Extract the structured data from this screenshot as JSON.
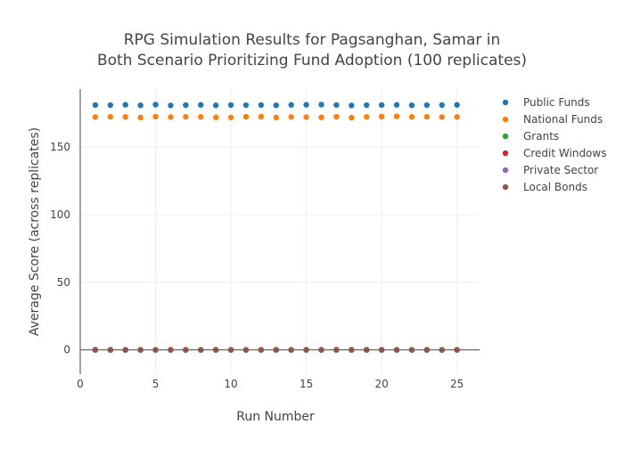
{
  "chart_data": {
    "type": "scatter",
    "title_lines": [
      "RPG Simulation Results for Pagsanghan, Samar in",
      "Both Scenario Prioritizing Fund Adoption (100 replicates)"
    ],
    "xlabel": "Run Number",
    "ylabel": "Average Score (across replicates)",
    "xlim": [
      0,
      26.5
    ],
    "ylim": [
      -18,
      193
    ],
    "x_ticks": [
      0,
      5,
      10,
      15,
      20,
      25
    ],
    "y_ticks": [
      0,
      50,
      100,
      150
    ],
    "grid": true,
    "legend_position": "top-right",
    "x": [
      1,
      2,
      3,
      4,
      5,
      6,
      7,
      8,
      9,
      10,
      11,
      12,
      13,
      14,
      15,
      16,
      17,
      18,
      19,
      20,
      21,
      22,
      23,
      24,
      25
    ],
    "series": [
      {
        "name": "Public Funds",
        "color": "#1f77b4",
        "values": [
          181.2,
          181.1,
          181.4,
          181.0,
          181.5,
          180.9,
          181.1,
          181.3,
          181.0,
          181.2,
          181.1,
          181.2,
          181.0,
          181.3,
          181.4,
          181.5,
          181.2,
          180.9,
          181.1,
          181.2,
          181.3,
          181.0,
          181.1,
          181.2,
          181.3
        ]
      },
      {
        "name": "National Funds",
        "color": "#ff7f0e",
        "values": [
          172.3,
          172.5,
          172.4,
          172.0,
          172.6,
          172.3,
          172.5,
          172.4,
          172.1,
          172.0,
          172.5,
          172.6,
          172.0,
          172.4,
          172.3,
          172.1,
          172.5,
          171.9,
          172.4,
          172.6,
          172.8,
          172.4,
          172.5,
          172.3,
          172.4
        ]
      },
      {
        "name": "Grants",
        "color": "#2ca02c",
        "values": [
          0,
          0,
          0,
          0,
          0,
          0,
          0,
          0,
          0,
          0,
          0,
          0,
          0,
          0,
          0,
          0,
          0,
          0,
          0,
          0,
          0,
          0,
          0,
          0,
          0
        ]
      },
      {
        "name": "Credit Windows",
        "color": "#d62728",
        "values": [
          0,
          0,
          0,
          0,
          0,
          0,
          0,
          0,
          0,
          0,
          0,
          0,
          0,
          0,
          0,
          0,
          0,
          0,
          0,
          0,
          0,
          0,
          0,
          0,
          0
        ]
      },
      {
        "name": "Private Sector",
        "color": "#9467bd",
        "values": [
          0,
          0,
          0,
          0,
          0,
          0,
          0,
          0,
          0,
          0,
          0,
          0,
          0,
          0,
          0,
          0,
          0,
          0,
          0,
          0,
          0,
          0,
          0,
          0,
          0
        ]
      },
      {
        "name": "Local Bonds",
        "color": "#8c564b",
        "values": [
          0,
          0,
          0,
          0,
          0,
          0,
          0,
          0,
          0,
          0,
          0,
          0,
          0,
          0,
          0,
          0,
          0,
          0,
          0,
          0,
          0,
          0,
          0,
          0,
          0
        ]
      }
    ]
  }
}
